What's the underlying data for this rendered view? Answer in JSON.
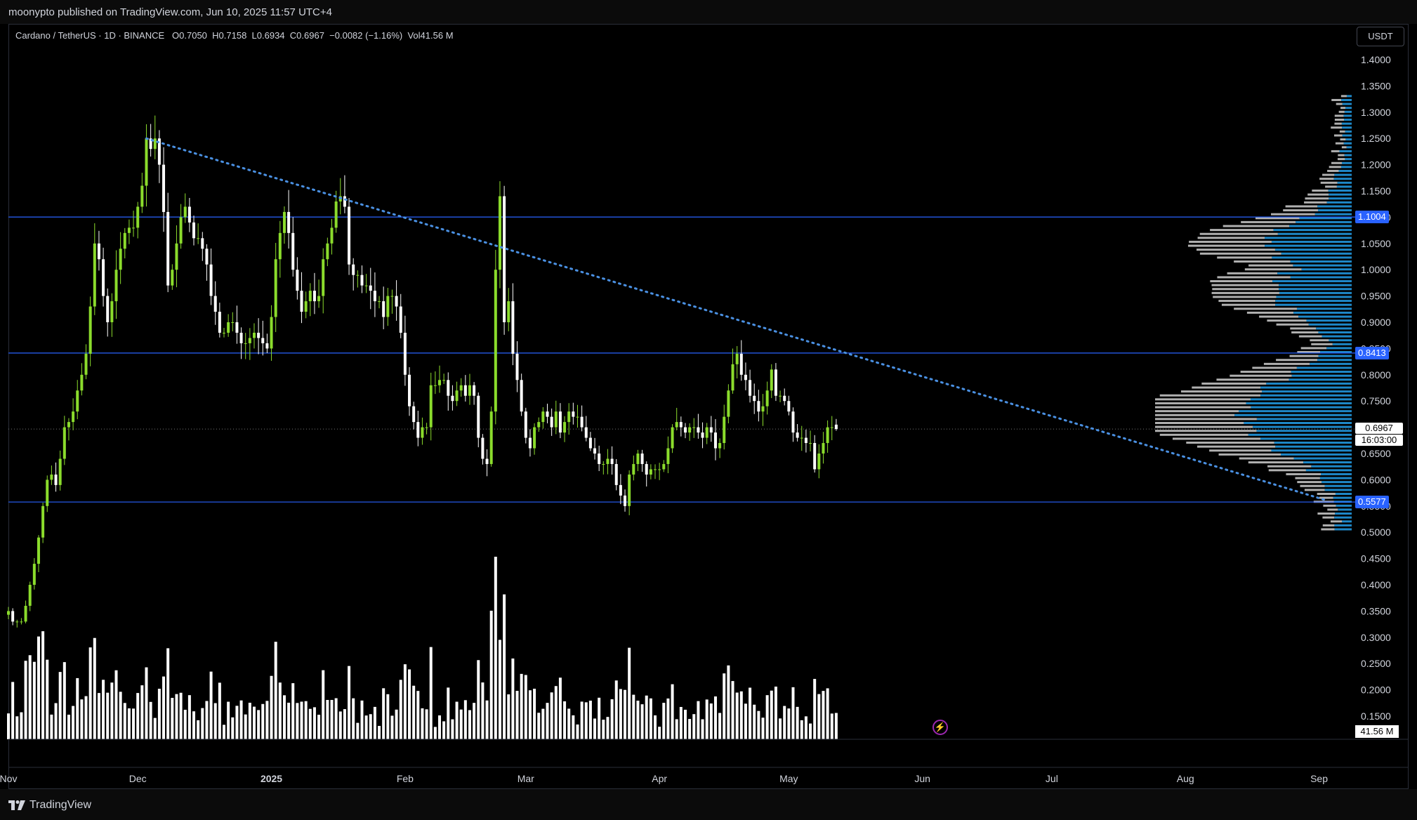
{
  "header": {
    "published": "moonypto published on TradingView.com, Jun 10, 2025 11:57 UTC+4"
  },
  "legend": {
    "symbol": "Cardano / TetherUS · 1D · BINANCE",
    "open_key": "O",
    "open": "0.7050",
    "high_key": "H",
    "high": "0.7158",
    "low_key": "L",
    "low": "0.6934",
    "close_key": "C",
    "close": "0.6967",
    "change": "−0.0082 (−1.16%)",
    "vol_key": "Vol",
    "vol": "41.56 M"
  },
  "currency": "USDT",
  "footer": {
    "brand": "TradingView"
  },
  "labels": {
    "current_price": "0.6967",
    "countdown": "16:03:00",
    "volume": "41.56 M",
    "levels": [
      "1.1004",
      "0.8413",
      "0.5577"
    ]
  },
  "colors": {
    "up": "#8bdc2c",
    "down": "#ffffff",
    "level": "#2962ff",
    "trend": "#4a90e2",
    "vp_up": "#1e88c8",
    "vp_down": "#b0b0b0",
    "background": "#000000"
  },
  "chart_data": {
    "type": "candlestick",
    "symbol": "ADAUSDT",
    "timeframe": "1D",
    "y_axis_ticks": [
      "1.4000",
      "1.3500",
      "1.3000",
      "1.2500",
      "1.2000",
      "1.1500",
      "1.1000",
      "1.0500",
      "1.0000",
      "0.9500",
      "0.9000",
      "0.8500",
      "0.8000",
      "0.7500",
      "0.7000",
      "0.6500",
      "0.6000",
      "0.5500",
      "0.5000",
      "0.4500",
      "0.4000",
      "0.3500",
      "0.3000",
      "0.2500",
      "0.2000",
      "0.1500"
    ],
    "y_range": [
      0.1,
      1.46
    ],
    "x_axis_ticks": [
      {
        "label": "Nov",
        "date": "2024-11-01"
      },
      {
        "label": "Dec",
        "date": "2024-12-01"
      },
      {
        "label": "2025",
        "date": "2025-01-01"
      },
      {
        "label": "Feb",
        "date": "2025-02-01"
      },
      {
        "label": "Mar",
        "date": "2025-03-01"
      },
      {
        "label": "Apr",
        "date": "2025-04-01"
      },
      {
        "label": "May",
        "date": "2025-05-01"
      },
      {
        "label": "Jun",
        "date": "2025-06-01"
      },
      {
        "label": "Jul",
        "date": "2025-07-01"
      },
      {
        "label": "Aug",
        "date": "2025-08-01"
      },
      {
        "label": "Sep",
        "date": "2025-09-01"
      }
    ],
    "horizontal_levels": [
      1.1004,
      0.8413,
      0.5577
    ],
    "trendline": {
      "from": {
        "date": "2024-12-03",
        "price": 1.25
      },
      "to": {
        "date": "2025-09-03",
        "price": 0.56
      }
    },
    "last": {
      "date": "2025-06-10",
      "open": 0.705,
      "high": 0.7158,
      "low": 0.6934,
      "close": 0.6967,
      "volume_m": 41.56
    },
    "closes": {
      "start": "2024-11-01",
      "values": [
        0.35,
        0.33,
        0.33,
        0.33,
        0.36,
        0.4,
        0.44,
        0.49,
        0.55,
        0.6,
        0.61,
        0.59,
        0.64,
        0.7,
        0.71,
        0.73,
        0.77,
        0.8,
        0.84,
        0.93,
        1.05,
        1.02,
        0.95,
        0.9,
        0.94,
        1.0,
        1.04,
        1.07,
        1.08,
        1.08,
        1.12,
        1.16,
        1.25,
        1.23,
        1.25,
        1.2,
        1.11,
        0.97,
        1.0,
        1.05,
        1.1,
        1.12,
        1.09,
        1.06,
        1.06,
        1.04,
        1.01,
        0.95,
        0.92,
        0.88,
        0.88,
        0.9,
        0.9,
        0.88,
        0.86,
        0.86,
        0.87,
        0.88,
        0.87,
        0.86,
        0.85,
        0.91,
        1.02,
        1.07,
        1.11,
        1.07,
        1.0,
        0.96,
        0.92,
        0.94,
        0.96,
        0.94,
        0.95,
        1.02,
        1.05,
        1.08,
        1.13,
        1.14,
        1.12,
        1.01,
        0.99,
        0.99,
        0.97,
        0.97,
        0.96,
        0.94,
        0.94,
        0.91,
        0.95,
        0.95,
        0.93,
        0.88,
        0.8,
        0.74,
        0.71,
        0.68,
        0.7,
        0.7,
        0.78,
        0.78,
        0.79,
        0.79,
        0.76,
        0.75,
        0.77,
        0.78,
        0.76,
        0.78,
        0.76,
        0.68,
        0.64,
        0.63,
        0.73,
        1.0,
        1.14,
        0.9,
        0.94,
        0.84,
        0.79,
        0.73,
        0.68,
        0.66,
        0.7,
        0.71,
        0.73,
        0.72,
        0.7,
        0.73,
        0.69,
        0.71,
        0.73,
        0.72,
        0.72,
        0.7,
        0.68,
        0.66,
        0.65,
        0.63,
        0.63,
        0.64,
        0.63,
        0.59,
        0.57,
        0.55,
        0.61,
        0.63,
        0.65,
        0.63,
        0.61,
        0.62,
        0.62,
        0.62,
        0.63,
        0.66,
        0.7,
        0.71,
        0.7,
        0.69,
        0.7,
        0.7,
        0.69,
        0.68,
        0.7,
        0.69,
        0.66,
        0.67,
        0.72,
        0.77,
        0.82,
        0.84,
        0.8,
        0.79,
        0.76,
        0.75,
        0.73,
        0.74,
        0.77,
        0.81,
        0.76,
        0.76,
        0.75,
        0.73,
        0.69,
        0.68,
        0.68,
        0.67,
        0.67,
        0.62,
        0.65,
        0.67,
        0.7,
        0.7,
        0.6967
      ]
    },
    "volume_axis": {
      "last_label": "41.56 M"
    }
  }
}
